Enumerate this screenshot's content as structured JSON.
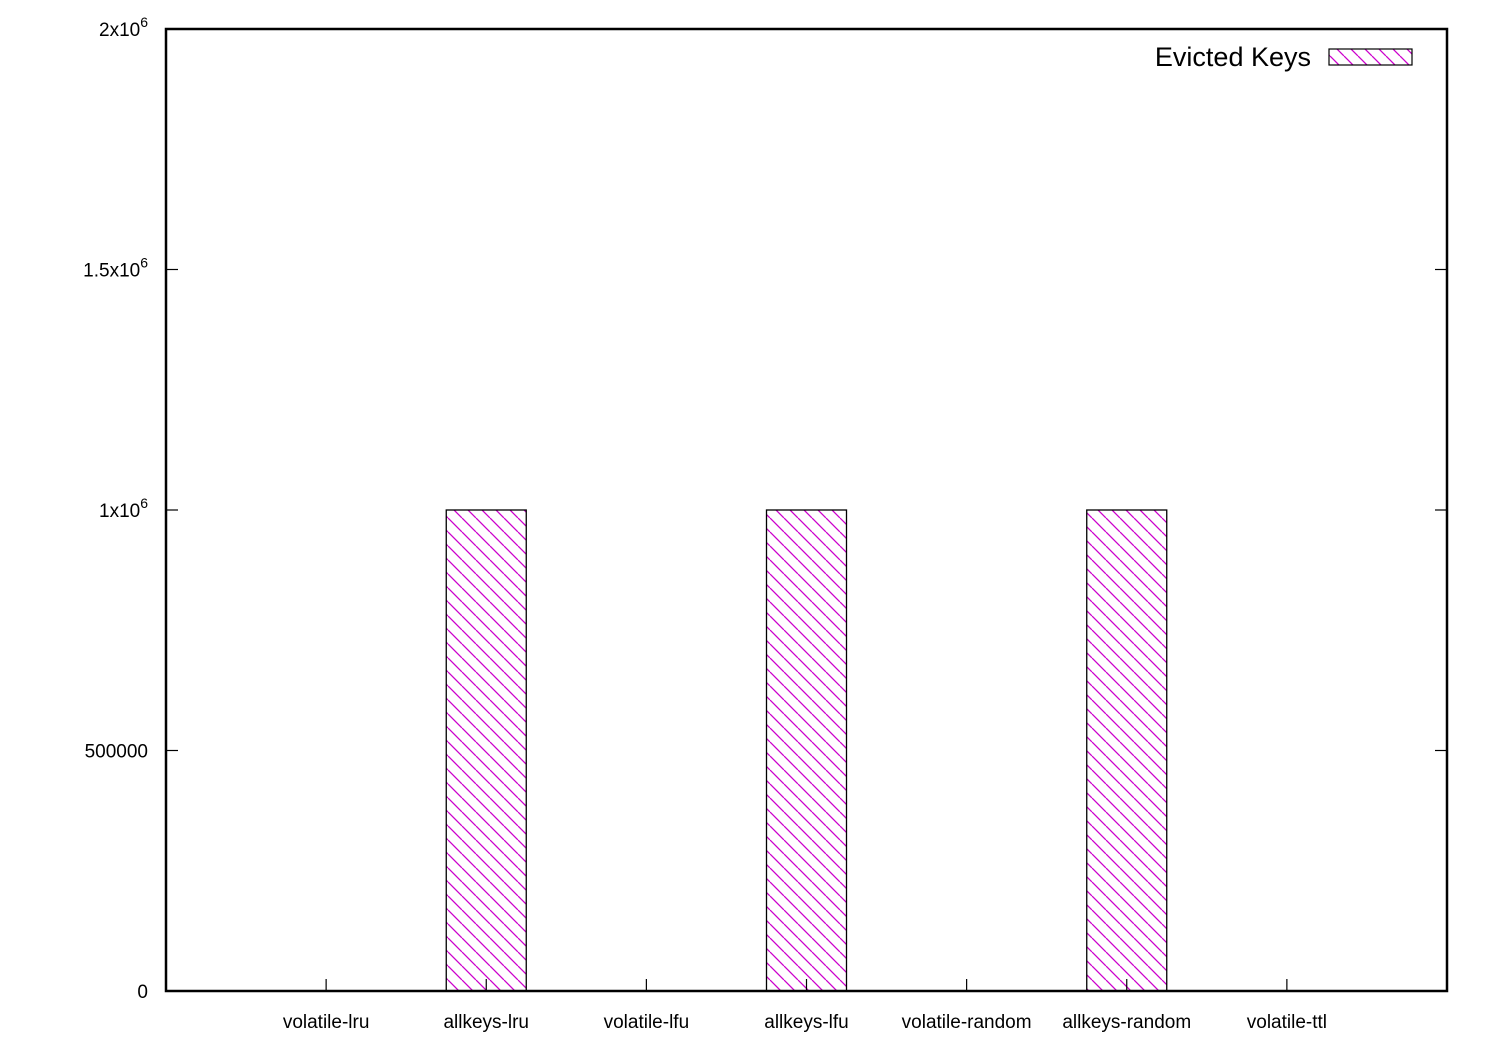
{
  "chart_data": {
    "type": "bar",
    "categories": [
      "volatile-lru",
      "allkeys-lru",
      "volatile-lfu",
      "allkeys-lfu",
      "volatile-random",
      "allkeys-random",
      "volatile-ttl"
    ],
    "series": [
      {
        "name": "Evicted Keys",
        "values": [
          0,
          1000000,
          0,
          1000000,
          0,
          1000000,
          0
        ]
      }
    ],
    "ylim": [
      0,
      2000000
    ],
    "yticks": [
      {
        "value": 0,
        "label": "0"
      },
      {
        "value": 500000,
        "label": "500000"
      },
      {
        "value": 1000000,
        "label": "1x10",
        "exp": "6"
      },
      {
        "value": 1500000,
        "label": "1.5x10",
        "exp": "6"
      },
      {
        "value": 2000000,
        "label": "2x10",
        "exp": "6"
      }
    ],
    "grid": false,
    "legend_position": "top-right",
    "bar_pattern": "diagonal-hatch",
    "bar_color": "#cc00cc"
  }
}
